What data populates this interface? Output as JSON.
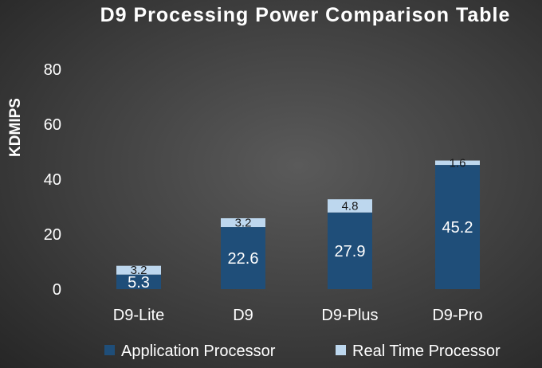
{
  "chart_data": {
    "type": "bar",
    "stacked": true,
    "title": "D9 Processing Power Comparison Table",
    "xlabel": "",
    "ylabel": "KDMIPS",
    "ylim": [
      0,
      80
    ],
    "yticks": [
      0,
      20,
      40,
      60,
      80
    ],
    "grid": false,
    "legend": "bottom",
    "categories": [
      "D9-Lite",
      "D9",
      "D9-Plus",
      "D9-Pro"
    ],
    "series": [
      {
        "name": "Application Processor",
        "values": [
          5.3,
          22.6,
          27.9,
          45.2
        ],
        "color": "#1f4e79"
      },
      {
        "name": "Real Time Processor",
        "values": [
          3.2,
          3.2,
          4.8,
          1.6
        ],
        "color": "#bdd7ee"
      }
    ]
  }
}
